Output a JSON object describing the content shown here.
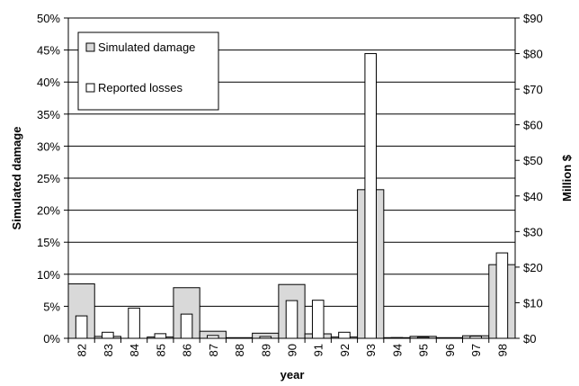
{
  "chart_data": {
    "type": "bar",
    "title": "",
    "xlabel": "year",
    "ylabel": "Simulated damage",
    "y2label": "Million $",
    "categories": [
      "82",
      "83",
      "84",
      "85",
      "86",
      "87",
      "88",
      "89",
      "90",
      "91",
      "92",
      "93",
      "94",
      "95",
      "96",
      "97",
      "98"
    ],
    "yticks": [
      "0%",
      "5%",
      "10%",
      "15%",
      "20%",
      "25%",
      "30%",
      "35%",
      "40%",
      "45%",
      "50%"
    ],
    "y2ticks": [
      "$0",
      "$10",
      "$20",
      "$30",
      "$40",
      "$50",
      "$60",
      "$70",
      "$80",
      "$90"
    ],
    "ylim": [
      0,
      50
    ],
    "y2lim": [
      0,
      90
    ],
    "grid": true,
    "legend_position": "top-left",
    "series": [
      {
        "name": "Simulated damage",
        "axis": "left",
        "unit": "%",
        "color": "#d9d9d9",
        "values": [
          8.5,
          0.3,
          0.0,
          0.2,
          7.9,
          1.1,
          0.1,
          0.8,
          8.4,
          0.7,
          0.2,
          23.2,
          0.1,
          0.3,
          0.1,
          0.4,
          11.5
        ]
      },
      {
        "name": "Reported losses",
        "axis": "right",
        "unit": "Million $",
        "color": "#ffffff",
        "values": [
          6.3,
          1.7,
          8.5,
          1.3,
          6.8,
          0.8,
          0.0,
          0.5,
          10.6,
          10.7,
          1.7,
          80.0,
          0.2,
          0.3,
          0.1,
          0.6,
          24.0
        ]
      }
    ]
  }
}
